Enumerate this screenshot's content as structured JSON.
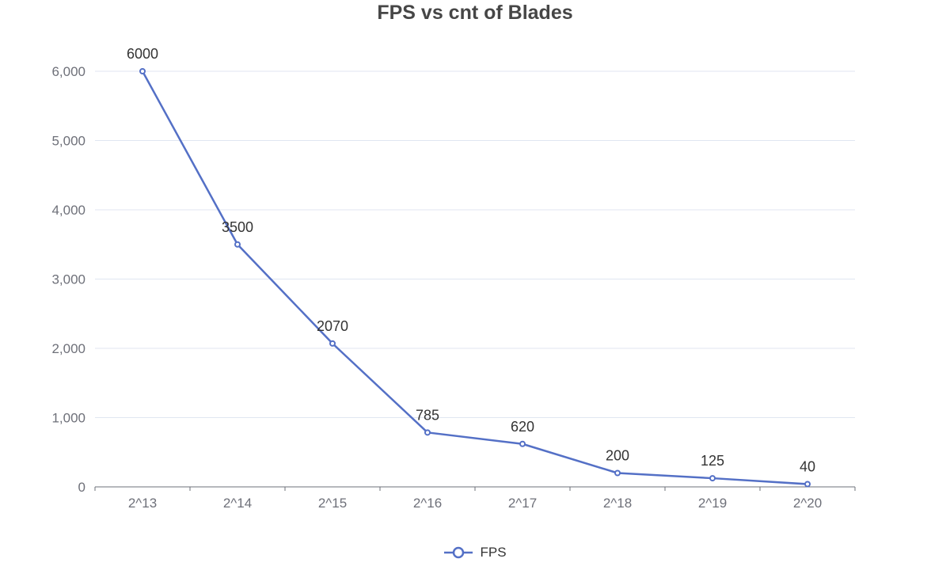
{
  "chart_data": {
    "type": "line",
    "title": "FPS vs cnt of Blades",
    "categories": [
      "2^13",
      "2^14",
      "2^15",
      "2^16",
      "2^17",
      "2^18",
      "2^19",
      "2^20"
    ],
    "series": [
      {
        "name": "FPS",
        "values": [
          6000,
          3500,
          2070,
          785,
          620,
          200,
          125,
          40
        ]
      }
    ],
    "yticks": [
      "0",
      "1,000",
      "2,000",
      "3,000",
      "4,000",
      "5,000",
      "6,000"
    ],
    "ylim": [
      0,
      6000
    ],
    "grid": true,
    "legend_position": "bottom-center",
    "color": "#5470c6"
  }
}
